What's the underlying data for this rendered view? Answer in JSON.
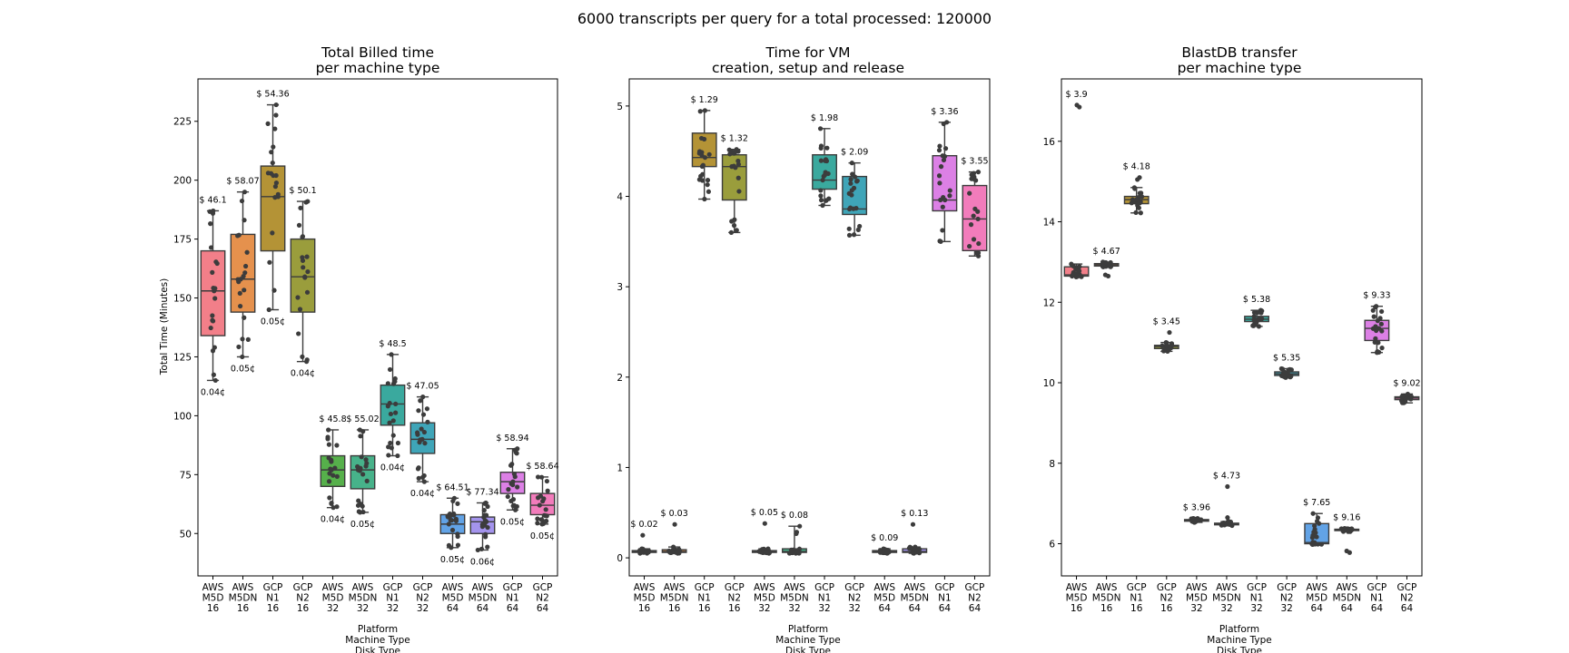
{
  "suptitle": "6000 transcripts per query for a total processed: 120000",
  "colors": {
    "palette": [
      "#f27f89",
      "#e5914d",
      "#b49336",
      "#9a9d3c",
      "#56b04b",
      "#47b28a",
      "#3aa99e",
      "#3fa5b8",
      "#62a3e6",
      "#a494ed",
      "#dc80e5",
      "#f27cbb"
    ],
    "points": "#3c3c3c",
    "lines": "#3c3c3c"
  },
  "chart_data": [
    {
      "type": "box",
      "title": [
        "Total Billed time",
        "per machine type"
      ],
      "ylabel": "Total Time (Minutes)",
      "xlabel": [
        "Platform",
        "Machine Type",
        "Disk Type"
      ],
      "ylim": [
        32,
        243
      ],
      "yticks": [
        50,
        75,
        100,
        125,
        150,
        175,
        200,
        225
      ],
      "categories": [
        [
          "AWS",
          "M5D",
          "16"
        ],
        [
          "AWS",
          "M5DN",
          "16"
        ],
        [
          "GCP",
          "N1",
          "16"
        ],
        [
          "GCP",
          "N2",
          "16"
        ],
        [
          "AWS",
          "M5D",
          "32"
        ],
        [
          "AWS",
          "M5DN",
          "32"
        ],
        [
          "GCP",
          "N1",
          "32"
        ],
        [
          "GCP",
          "N2",
          "32"
        ],
        [
          "AWS",
          "M5D",
          "64"
        ],
        [
          "AWS",
          "M5DN",
          "64"
        ],
        [
          "GCP",
          "N1",
          "64"
        ],
        [
          "GCP",
          "N2",
          "64"
        ]
      ],
      "boxes": [
        {
          "min": 115,
          "q1": 134,
          "median": 153,
          "q3": 170,
          "max": 187,
          "cost": "$ 46.1",
          "per_unit": "0.04¢"
        },
        {
          "min": 125,
          "q1": 144,
          "median": 158,
          "q3": 177,
          "max": 195,
          "cost": "$ 58.07",
          "per_unit": "0.05¢"
        },
        {
          "min": 145,
          "q1": 170,
          "median": 193,
          "q3": 206,
          "max": 232,
          "cost": "$ 54.36",
          "per_unit": "0.05¢"
        },
        {
          "min": 123,
          "q1": 144,
          "median": 159,
          "q3": 175,
          "max": 191,
          "cost": "$ 50.1",
          "per_unit": "0.04¢"
        },
        {
          "min": 61,
          "q1": 70,
          "median": 77,
          "q3": 83,
          "max": 94,
          "cost": "$ 45.8",
          "per_unit": "0.04¢"
        },
        {
          "min": 59,
          "q1": 69,
          "median": 77,
          "q3": 83,
          "max": 94,
          "cost": "$ 55.02",
          "per_unit": "0.05¢"
        },
        {
          "min": 83,
          "q1": 96,
          "median": 105,
          "q3": 113,
          "max": 126,
          "cost": "$ 48.5",
          "per_unit": "0.04¢"
        },
        {
          "min": 72,
          "q1": 84,
          "median": 90,
          "q3": 97,
          "max": 108,
          "cost": "$ 47.05",
          "per_unit": "0.04¢"
        },
        {
          "min": 44,
          "q1": 50,
          "median": 54,
          "q3": 58,
          "max": 65,
          "cost": "$ 64.51",
          "per_unit": "0.05¢"
        },
        {
          "min": 43,
          "q1": 50,
          "median": 55,
          "q3": 57,
          "max": 63,
          "cost": "$ 77.34",
          "per_unit": "0.06¢"
        },
        {
          "min": 60,
          "q1": 67,
          "median": 72,
          "q3": 76,
          "max": 86,
          "cost": "$ 58.94",
          "per_unit": "0.05¢"
        },
        {
          "min": 54,
          "q1": 58,
          "median": 62,
          "q3": 67,
          "max": 74,
          "cost": "$ 58.64",
          "per_unit": "0.05¢"
        }
      ]
    },
    {
      "type": "box",
      "title": [
        "Time for VM",
        "creation, setup and release"
      ],
      "ylabel": "",
      "xlabel": [
        "Platform",
        "Machine Type",
        "Disk Type"
      ],
      "ylim": [
        -0.2,
        5.3
      ],
      "yticks": [
        0,
        1,
        2,
        3,
        4,
        5
      ],
      "categories": [
        [
          "AWS",
          "M5D",
          "16"
        ],
        [
          "AWS",
          "M5DN",
          "16"
        ],
        [
          "GCP",
          "N1",
          "16"
        ],
        [
          "GCP",
          "N2",
          "16"
        ],
        [
          "AWS",
          "M5D",
          "32"
        ],
        [
          "AWS",
          "M5DN",
          "32"
        ],
        [
          "GCP",
          "N1",
          "32"
        ],
        [
          "GCP",
          "N2",
          "32"
        ],
        [
          "AWS",
          "M5D",
          "64"
        ],
        [
          "AWS",
          "M5DN",
          "64"
        ],
        [
          "GCP",
          "N1",
          "64"
        ],
        [
          "GCP",
          "N2",
          "64"
        ]
      ],
      "boxes": [
        {
          "min": 0.05,
          "q1": 0.06,
          "median": 0.07,
          "q3": 0.08,
          "max": 0.1,
          "cost": "$ 0.02",
          "outliers": [
            0.25
          ]
        },
        {
          "min": 0.05,
          "q1": 0.06,
          "median": 0.07,
          "q3": 0.09,
          "max": 0.12,
          "cost": "$ 0.03",
          "outliers": [
            0.37
          ]
        },
        {
          "min": 3.97,
          "q1": 4.33,
          "median": 4.43,
          "q3": 4.7,
          "max": 4.95,
          "cost": "$ 1.29"
        },
        {
          "min": 3.6,
          "q1": 3.96,
          "median": 4.33,
          "q3": 4.46,
          "max": 4.52,
          "cost": "$ 1.32"
        },
        {
          "min": 0.05,
          "q1": 0.06,
          "median": 0.07,
          "q3": 0.08,
          "max": 0.1,
          "cost": "$ 0.05",
          "outliers": [
            0.38
          ]
        },
        {
          "min": 0.05,
          "q1": 0.06,
          "median": 0.07,
          "q3": 0.1,
          "max": 0.35,
          "cost": "$ 0.08"
        },
        {
          "min": 3.9,
          "q1": 4.08,
          "median": 4.18,
          "q3": 4.46,
          "max": 4.75,
          "cost": "$ 1.98"
        },
        {
          "min": 3.57,
          "q1": 3.8,
          "median": 3.86,
          "q3": 4.22,
          "max": 4.37,
          "cost": "$ 2.09"
        },
        {
          "min": 0.05,
          "q1": 0.06,
          "median": 0.07,
          "q3": 0.08,
          "max": 0.1,
          "cost": "$ 0.09"
        },
        {
          "min": 0.05,
          "q1": 0.06,
          "median": 0.07,
          "q3": 0.1,
          "max": 0.12,
          "cost": "$ 0.13",
          "outliers": [
            0.37
          ]
        },
        {
          "min": 3.5,
          "q1": 3.84,
          "median": 3.96,
          "q3": 4.45,
          "max": 4.82,
          "cost": "$ 3.36"
        },
        {
          "min": 3.34,
          "q1": 3.4,
          "median": 3.75,
          "q3": 4.12,
          "max": 4.27,
          "cost": "$ 3.55"
        }
      ]
    },
    {
      "type": "box",
      "title": [
        "BlastDB transfer",
        "per machine type"
      ],
      "ylabel": "",
      "xlabel": [
        "Platform",
        "Machine Type",
        "Disk Type"
      ],
      "ylim": [
        5.2,
        17.55
      ],
      "yticks": [
        6,
        8,
        10,
        12,
        14,
        16
      ],
      "categories": [
        [
          "AWS",
          "M5D",
          "16"
        ],
        [
          "AWS",
          "M5DN",
          "16"
        ],
        [
          "GCP",
          "N1",
          "16"
        ],
        [
          "GCP",
          "N2",
          "16"
        ],
        [
          "AWS",
          "M5D",
          "32"
        ],
        [
          "AWS",
          "M5DN",
          "32"
        ],
        [
          "GCP",
          "N1",
          "32"
        ],
        [
          "GCP",
          "N2",
          "32"
        ],
        [
          "AWS",
          "M5D",
          "64"
        ],
        [
          "AWS",
          "M5DN",
          "64"
        ],
        [
          "GCP",
          "N1",
          "64"
        ],
        [
          "GCP",
          "N2",
          "64"
        ]
      ],
      "boxes": [
        {
          "min": 12.63,
          "q1": 12.65,
          "median": 12.68,
          "q3": 12.88,
          "max": 12.95,
          "cost": "$ 3.9",
          "outliers": [
            16.85,
            16.9
          ]
        },
        {
          "min": 12.88,
          "q1": 12.9,
          "median": 12.93,
          "q3": 12.96,
          "max": 13.0,
          "cost": "$ 4.67",
          "outliers": [
            12.68,
            12.65
          ]
        },
        {
          "min": 14.22,
          "q1": 14.45,
          "median": 14.55,
          "q3": 14.63,
          "max": 14.85,
          "cost": "$ 4.18",
          "outliers": [
            15.05,
            15.1
          ]
        },
        {
          "min": 10.78,
          "q1": 10.85,
          "median": 10.9,
          "q3": 10.93,
          "max": 11.0,
          "cost": "$ 3.45",
          "outliers": [
            11.25
          ]
        },
        {
          "min": 6.53,
          "q1": 6.56,
          "median": 6.58,
          "q3": 6.6,
          "max": 6.63,
          "cost": "$ 3.96"
        },
        {
          "min": 6.45,
          "q1": 6.47,
          "median": 6.49,
          "q3": 6.51,
          "max": 6.55,
          "cost": "$ 4.73",
          "outliers": [
            6.65,
            7.42
          ]
        },
        {
          "min": 11.4,
          "q1": 11.52,
          "median": 11.58,
          "q3": 11.65,
          "max": 11.8,
          "cost": "$ 5.38"
        },
        {
          "min": 10.13,
          "q1": 10.18,
          "median": 10.22,
          "q3": 10.27,
          "max": 10.35,
          "cost": "$ 5.35"
        },
        {
          "min": 5.98,
          "q1": 6.0,
          "median": 6.03,
          "q3": 6.5,
          "max": 6.75,
          "cost": "$ 7.65"
        },
        {
          "min": 6.3,
          "q1": 6.33,
          "median": 6.35,
          "q3": 6.36,
          "max": 6.38,
          "cost": "$ 9.16",
          "outliers": [
            5.78,
            5.82
          ]
        },
        {
          "min": 10.75,
          "q1": 11.05,
          "median": 11.35,
          "q3": 11.55,
          "max": 11.9,
          "cost": "$ 9.33"
        },
        {
          "min": 9.5,
          "q1": 9.58,
          "median": 9.62,
          "q3": 9.65,
          "max": 9.72,
          "cost": "$ 9.02"
        }
      ]
    }
  ]
}
